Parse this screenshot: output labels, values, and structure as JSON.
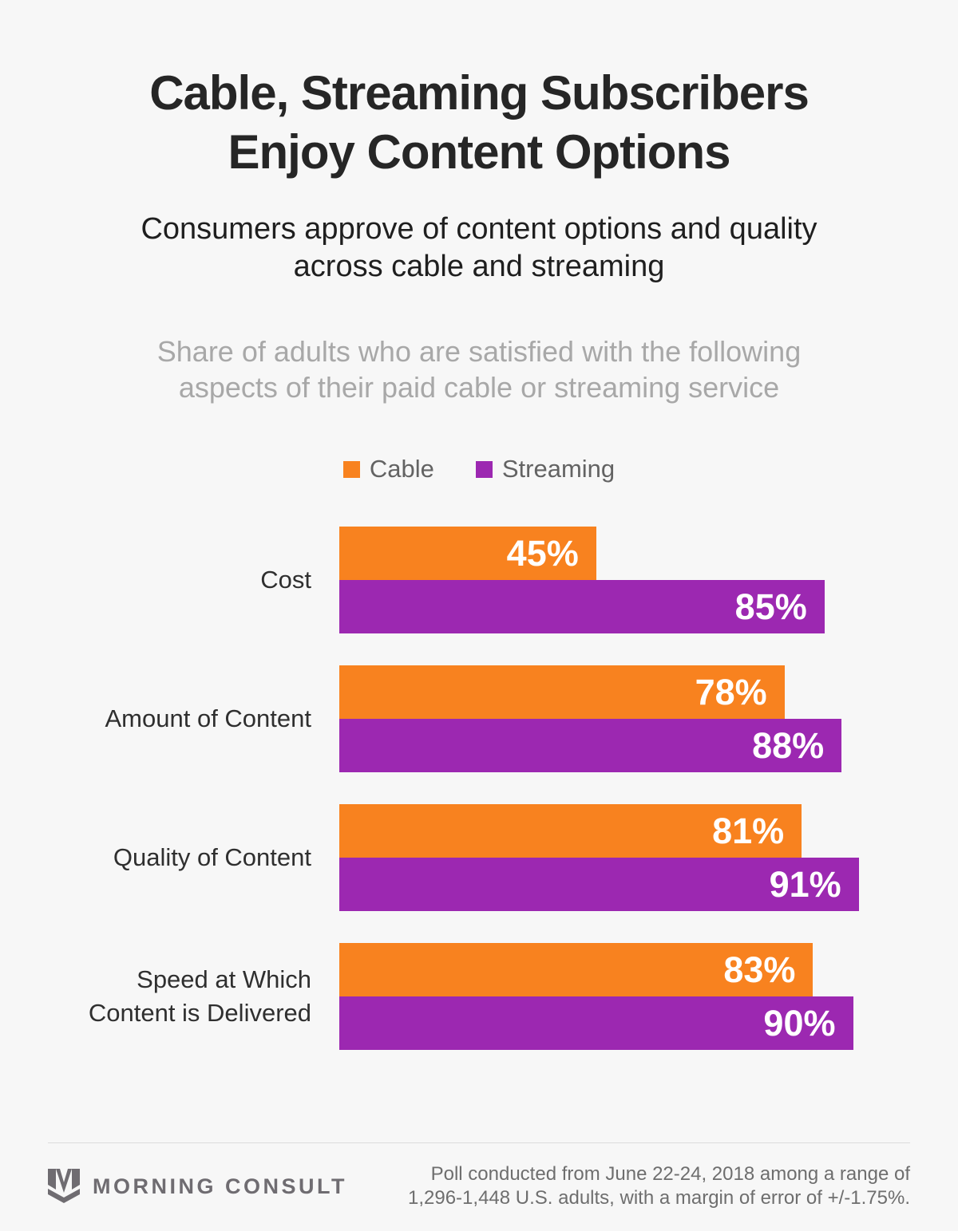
{
  "page": {
    "title": "Cable, Streaming Subscribers\nEnjoy Content Options",
    "subtitle": "Consumers approve of content options and quality across cable and streaming",
    "description": "Share of adults who are satisfied with the following aspects of their paid cable or streaming service"
  },
  "colors": {
    "background": "#f7f7f7",
    "cable": "#f8821f",
    "streaming": "#9c28b1",
    "value_label": "#ffffff"
  },
  "chart_data": {
    "type": "bar",
    "orientation": "horizontal",
    "title": "Share of adults who are satisfied with the following aspects of their paid cable or streaming service",
    "categories": [
      "Cost",
      "Amount of Content",
      "Quality of Content",
      "Speed at Which\nContent is Delivered"
    ],
    "series": [
      {
        "name": "Cable",
        "color": "#f8821f",
        "values": [
          45,
          78,
          81,
          83
        ]
      },
      {
        "name": "Streaming",
        "color": "#9c28b1",
        "values": [
          85,
          88,
          91,
          90
        ]
      }
    ],
    "value_suffix": "%",
    "xlim": [
      0,
      100
    ],
    "grid": false,
    "legend_position": "top-center",
    "value_labels": "inside-end"
  },
  "footer": {
    "brand": "MORNING CONSULT",
    "note": "Poll conducted from June 22-24, 2018 among a range of\n1,296-1,448 U.S. adults, with a margin of error of +/-1.75%."
  }
}
